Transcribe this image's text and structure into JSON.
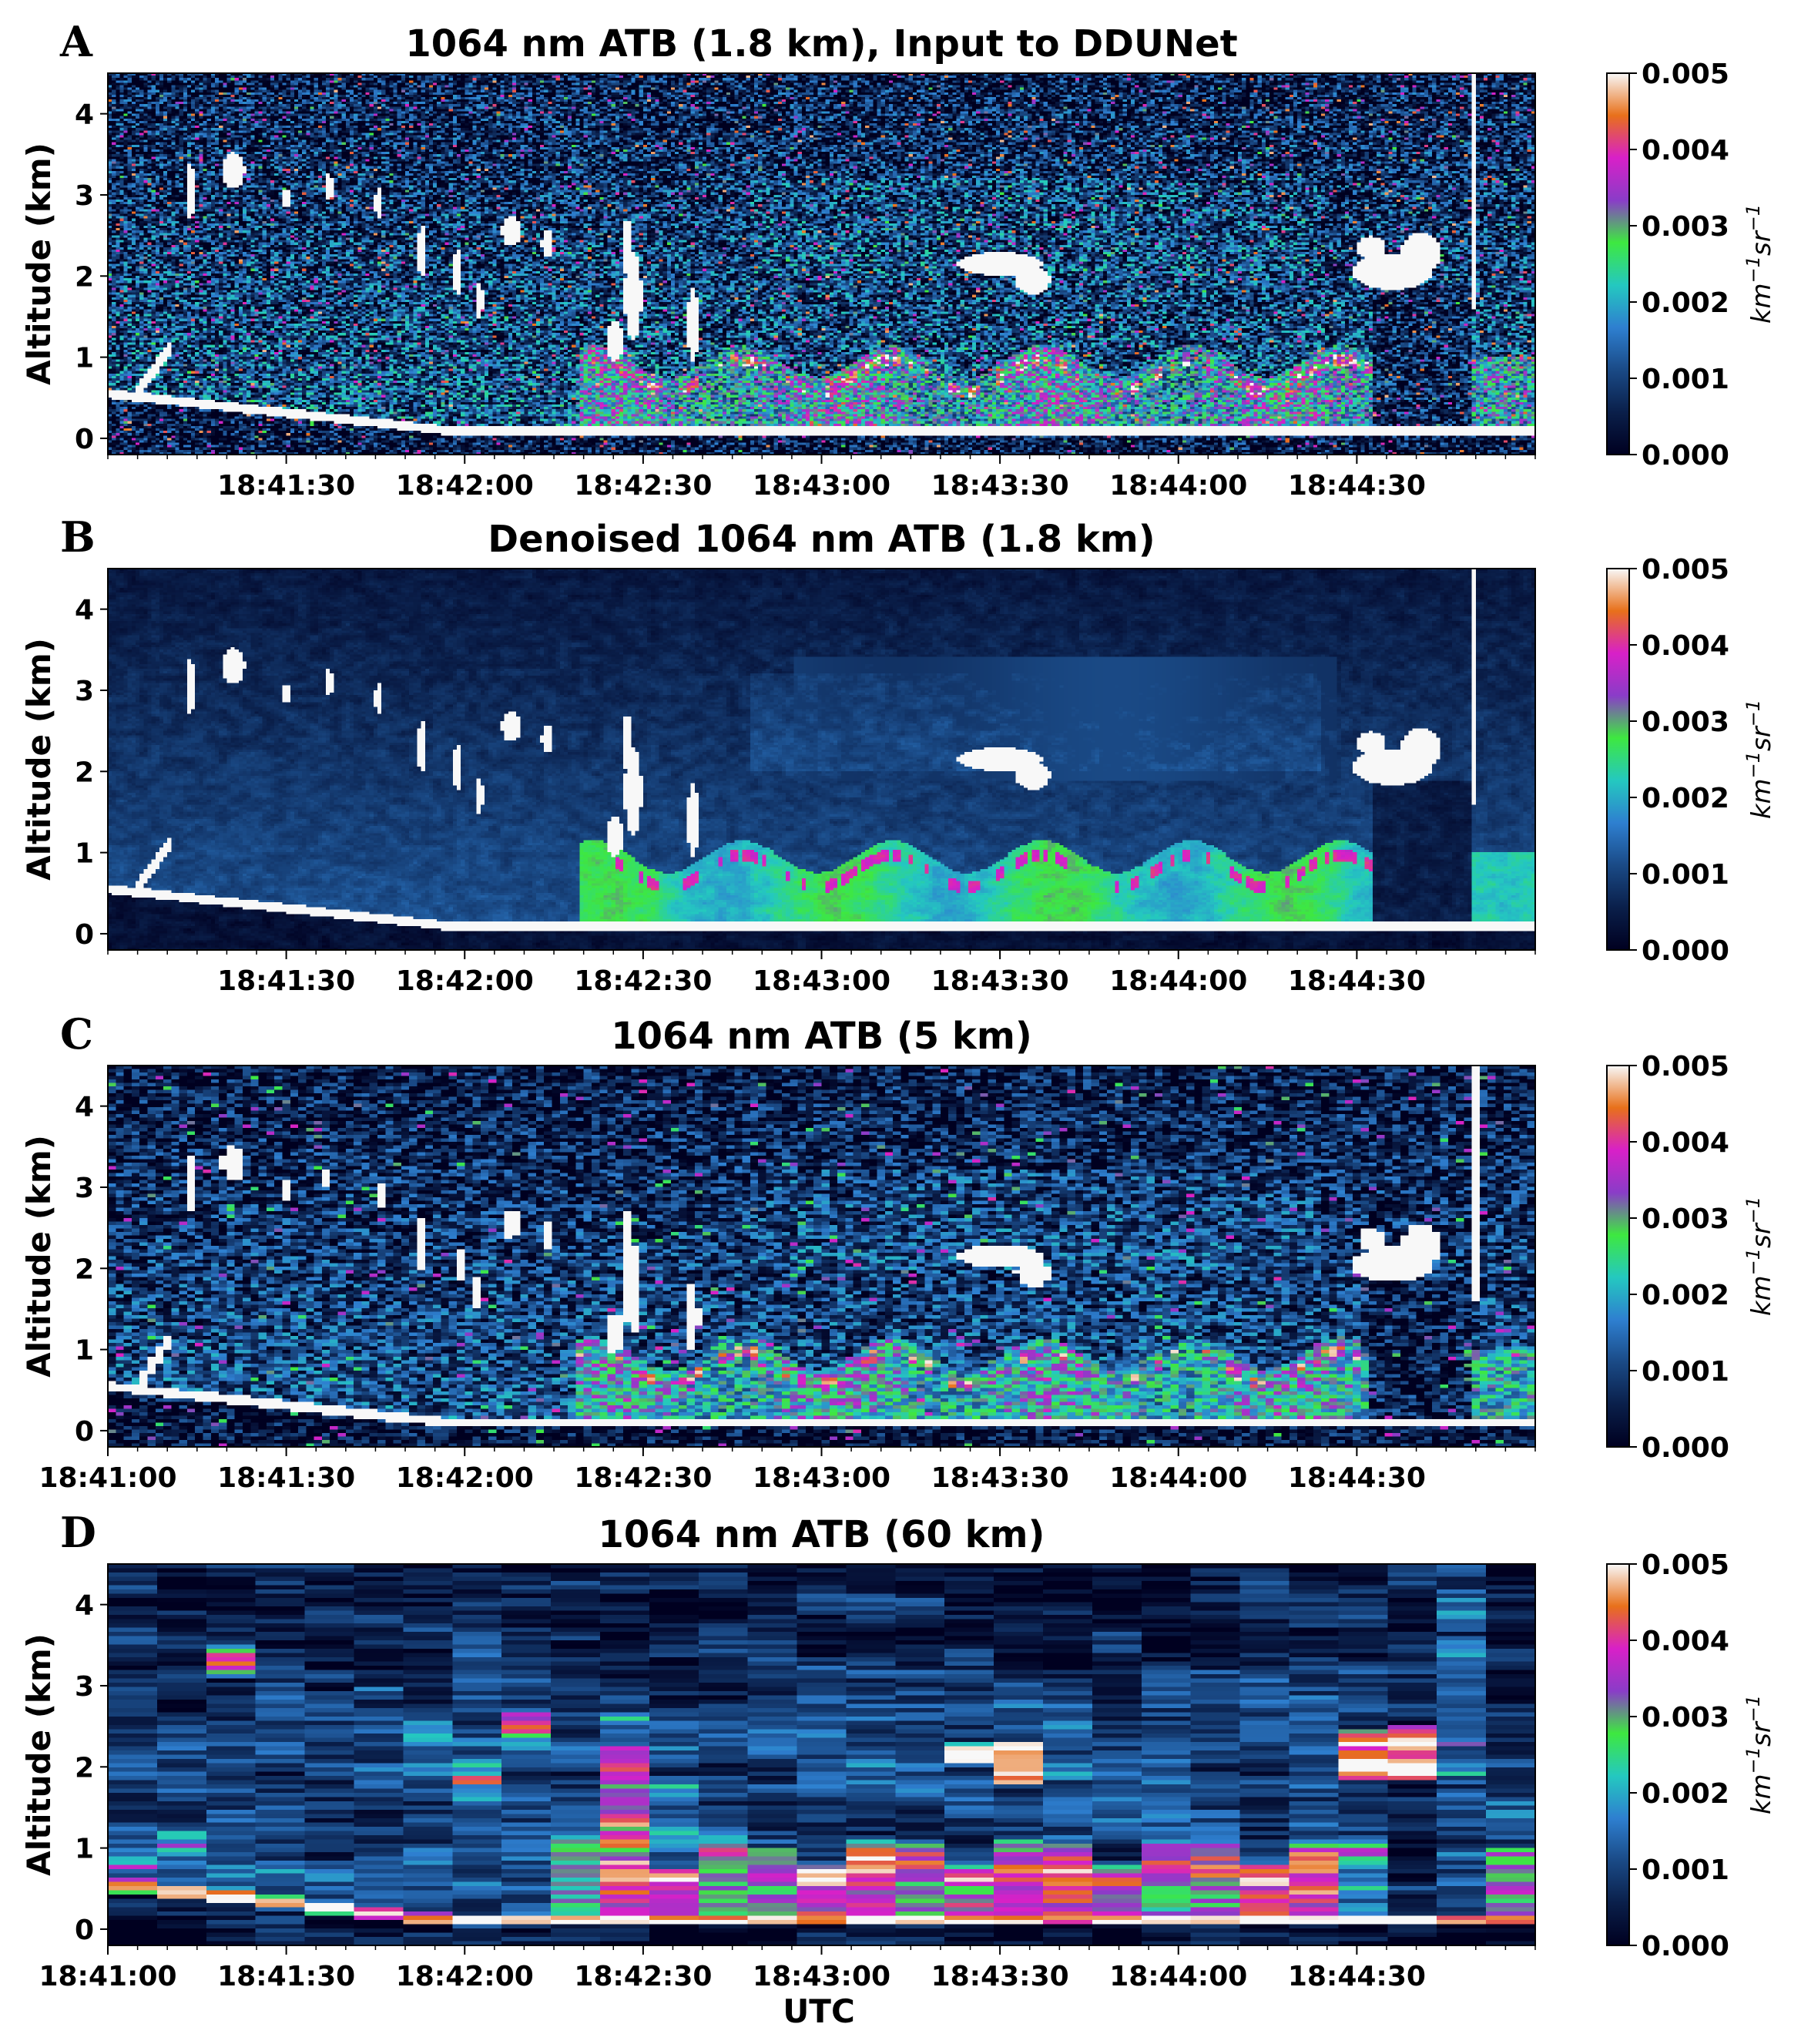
{
  "x_axis_label": "UTC",
  "colorbar": {
    "unit": "km",
    "unit_sup1": "−1",
    "unit_mid": "sr",
    "unit_sup2": "−1",
    "tick_labels": [
      "0.000",
      "0.001",
      "0.002",
      "0.003",
      "0.004",
      "0.005"
    ],
    "range": [
      0.0,
      0.005
    ],
    "colormap_stops": [
      "#000020",
      "#0a1f4a",
      "#1a4a86",
      "#2e7fd0",
      "#24c8c0",
      "#3ee840",
      "#8a3cc8",
      "#d820c8",
      "#e8701a",
      "#f8f8f8"
    ]
  },
  "chart_data": [
    {
      "type": "heatmap",
      "panel_label": "A",
      "title": "1064 nm ATB (1.8 km), Input to DDUNet",
      "ylabel": "Altitude (km)",
      "ylim": [
        -0.2,
        4.5
      ],
      "yticks": [
        "0",
        "1",
        "2",
        "3",
        "4"
      ],
      "xticks": [
        "18:41:30",
        "18:42:00",
        "18:42:30",
        "18:43:00",
        "18:43:30",
        "18:44:00",
        "18:44:30"
      ],
      "x_range": [
        "18:41:00",
        "18:45:00"
      ],
      "style": "noisy",
      "grid_cols": 360,
      "grid_rows": 160
    },
    {
      "type": "heatmap",
      "panel_label": "B",
      "title": "Denoised 1064 nm ATB (1.8 km)",
      "ylabel": "Altitude (km)",
      "ylim": [
        -0.2,
        4.5
      ],
      "yticks": [
        "0",
        "1",
        "2",
        "3",
        "4"
      ],
      "xticks": [
        "18:41:30",
        "18:42:00",
        "18:42:30",
        "18:43:00",
        "18:43:30",
        "18:44:00",
        "18:44:30"
      ],
      "x_range": [
        "18:41:00",
        "18:45:00"
      ],
      "style": "smooth",
      "grid_cols": 360,
      "grid_rows": 160
    },
    {
      "type": "heatmap",
      "panel_label": "C",
      "title": "1064 nm ATB (5 km)",
      "ylabel": "Altitude (km)",
      "ylim": [
        -0.2,
        4.5
      ],
      "yticks": [
        "0",
        "1",
        "2",
        "3",
        "4"
      ],
      "xticks": [
        "18:41:00",
        "18:41:30",
        "18:42:00",
        "18:42:30",
        "18:43:00",
        "18:43:30",
        "18:44:00",
        "18:44:30"
      ],
      "x_range": [
        "18:41:00",
        "18:45:00"
      ],
      "style": "medium",
      "grid_cols": 180,
      "grid_rows": 110
    },
    {
      "type": "heatmap",
      "panel_label": "D",
      "title": "1064 nm ATB (60 km)",
      "ylabel": "Altitude (km)",
      "ylim": [
        -0.2,
        4.5
      ],
      "yticks": [
        "0",
        "1",
        "2",
        "3",
        "4"
      ],
      "xticks": [
        "18:41:00",
        "18:41:30",
        "18:42:00",
        "18:42:30",
        "18:43:00",
        "18:43:30",
        "18:44:00",
        "18:44:30"
      ],
      "x_range": [
        "18:41:00",
        "18:45:00"
      ],
      "style": "blocky",
      "grid_cols": 29,
      "grid_rows": 90
    }
  ]
}
